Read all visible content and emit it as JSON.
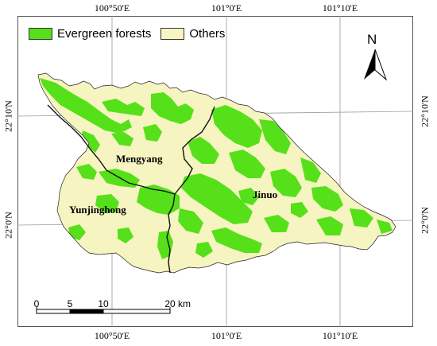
{
  "map": {
    "legend": [
      {
        "label": "Evergreen forests",
        "color": "#55e01a"
      },
      {
        "label": "Others",
        "color": "#f6f4c0"
      }
    ],
    "graticule": {
      "top_labels": [
        "100°50'E",
        "101°0'E",
        "101°10'E"
      ],
      "bottom_labels": [
        "100°50'E",
        "101°0'E",
        "101°10'E"
      ],
      "left_labels": [
        "22°10'N",
        "22°0'N"
      ],
      "right_labels": [
        "22°10'N",
        "22°0'N"
      ]
    },
    "regions": [
      {
        "name": "Mengyang"
      },
      {
        "name": "Yunjinghong"
      },
      {
        "name": "Jinuo"
      }
    ],
    "north_arrow": {
      "label": "N",
      "icon": "north-arrow-icon"
    },
    "scale_bar": {
      "ticks": [
        "0",
        "5",
        "10",
        "20"
      ],
      "unit": "km"
    },
    "colors": {
      "boundary": "#111111",
      "graticule": "#9a9a9a"
    }
  }
}
